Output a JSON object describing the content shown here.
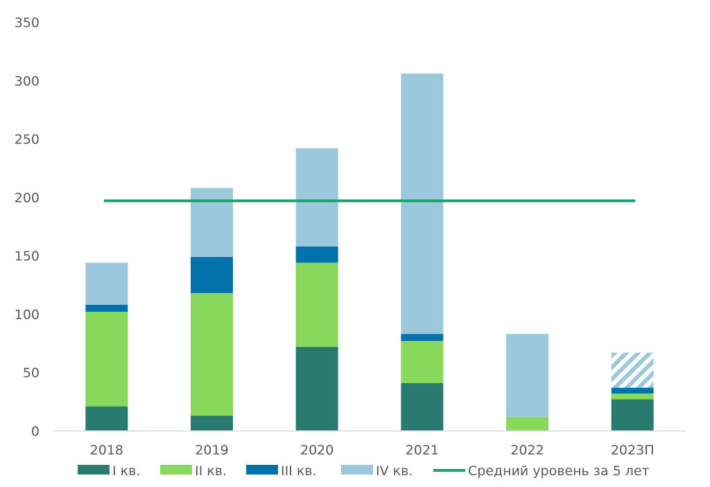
{
  "chart_data": {
    "type": "bar",
    "stacked": true,
    "categories": [
      "2018",
      "2019",
      "2020",
      "2021",
      "2022",
      "2023П"
    ],
    "series": [
      {
        "name": "I кв.",
        "color": "#2a7b6f",
        "values": [
          21,
          13,
          72,
          41,
          0,
          27
        ]
      },
      {
        "name": "II кв.",
        "color": "#88d95b",
        "values": [
          81,
          105,
          72,
          36,
          12,
          5
        ]
      },
      {
        "name": "III кв.",
        "color": "#0073ad",
        "values": [
          6,
          31,
          14,
          6,
          0,
          5
        ]
      },
      {
        "name": "IV кв.",
        "color": "#9cc8de",
        "values": [
          36,
          59,
          84,
          223,
          71,
          30
        ]
      }
    ],
    "hatched_category": "2023П",
    "hatched_series": "IV кв.",
    "average_line": {
      "name": "Средний уровень за 5 лет",
      "value": 197,
      "color": "#12a86b"
    },
    "ylim": [
      0,
      350
    ],
    "yticks": [
      0,
      50,
      100,
      150,
      200,
      250,
      300,
      350
    ],
    "legend_position": "bottom",
    "grid": false,
    "title": "",
    "xlabel": "",
    "ylabel": ""
  }
}
